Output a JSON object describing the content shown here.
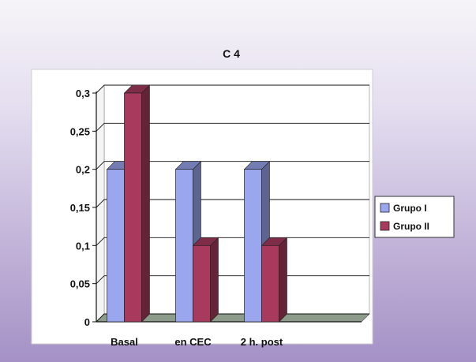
{
  "chart_data": {
    "type": "bar",
    "title": "C 4",
    "categories": [
      "Basal",
      "en CEC",
      "2 h. post"
    ],
    "series": [
      {
        "name": "Grupo I",
        "values": [
          0.2,
          0.2,
          0.2
        ],
        "color": "#9aa6ee"
      },
      {
        "name": "Grupo II",
        "values": [
          0.3,
          0.1,
          0.1
        ],
        "color": "#a83a5e"
      }
    ],
    "yticks": [
      "0",
      "0,05",
      "0,1",
      "0,15",
      "0,2",
      "0,25",
      "0,3"
    ],
    "ylim": [
      0,
      0.3
    ],
    "grid": true,
    "legend_position": "right",
    "xlabel": "",
    "ylabel": ""
  }
}
